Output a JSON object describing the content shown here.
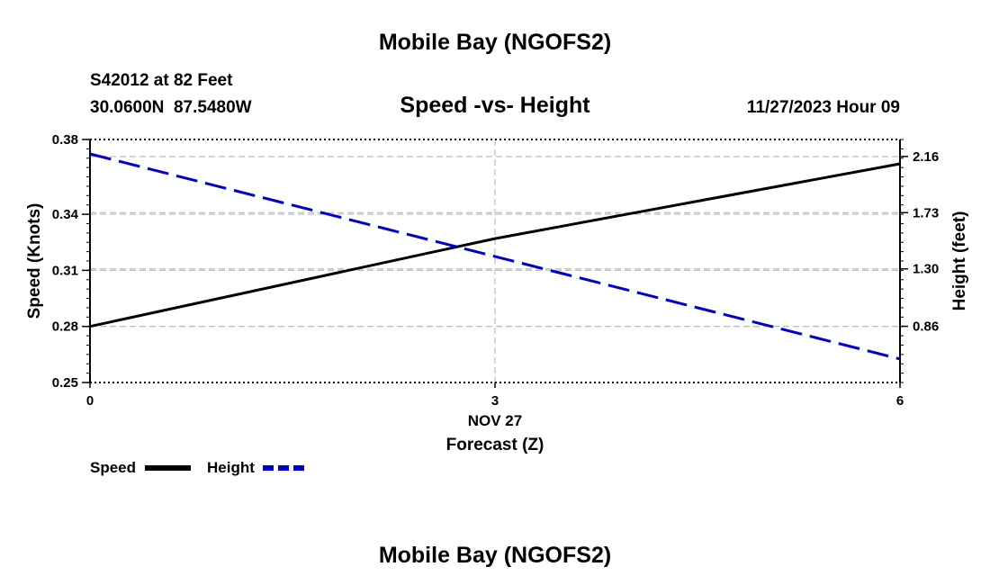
{
  "page": {
    "title_top": "Mobile Bay (NGOFS2)",
    "title_bottom": "Mobile Bay (NGOFS2)"
  },
  "station": {
    "name": "S42012 at 82 Feet",
    "coords": "30.0600N  87.5480W",
    "datetime": "11/27/2023 Hour 09"
  },
  "colors": {
    "speed": "#000000",
    "height": "#0000cc",
    "grid": "#bbbbbb"
  },
  "chart_data": {
    "type": "line",
    "title": "Speed -vs- Height",
    "xlabel": "Forecast (Z)",
    "xlabel_date": "NOV 27",
    "x_ticks": [
      "0",
      "3",
      "6"
    ],
    "xlim": [
      0,
      6
    ],
    "left_axis": {
      "label": "Speed (Knots)",
      "ylim": [
        0.25,
        0.38
      ],
      "ticks": [
        "0.38",
        "0.34",
        "0.31",
        "0.28",
        "0.25"
      ]
    },
    "right_axis": {
      "label": "Height (feet)",
      "ylim": [
        0.43,
        2.29
      ],
      "ticks": [
        "2.16",
        "1.73",
        "1.30",
        "0.86"
      ]
    },
    "series": [
      {
        "name": "Speed",
        "axis": "left",
        "style": "solid",
        "x": [
          0,
          3,
          6
        ],
        "values": [
          0.28,
          0.327,
          0.367
        ]
      },
      {
        "name": "Height",
        "axis": "right",
        "style": "dashed",
        "x": [
          0,
          6
        ],
        "values": [
          2.18,
          0.61
        ]
      }
    ],
    "legend": [
      "Speed",
      "Height"
    ],
    "grid": true
  }
}
